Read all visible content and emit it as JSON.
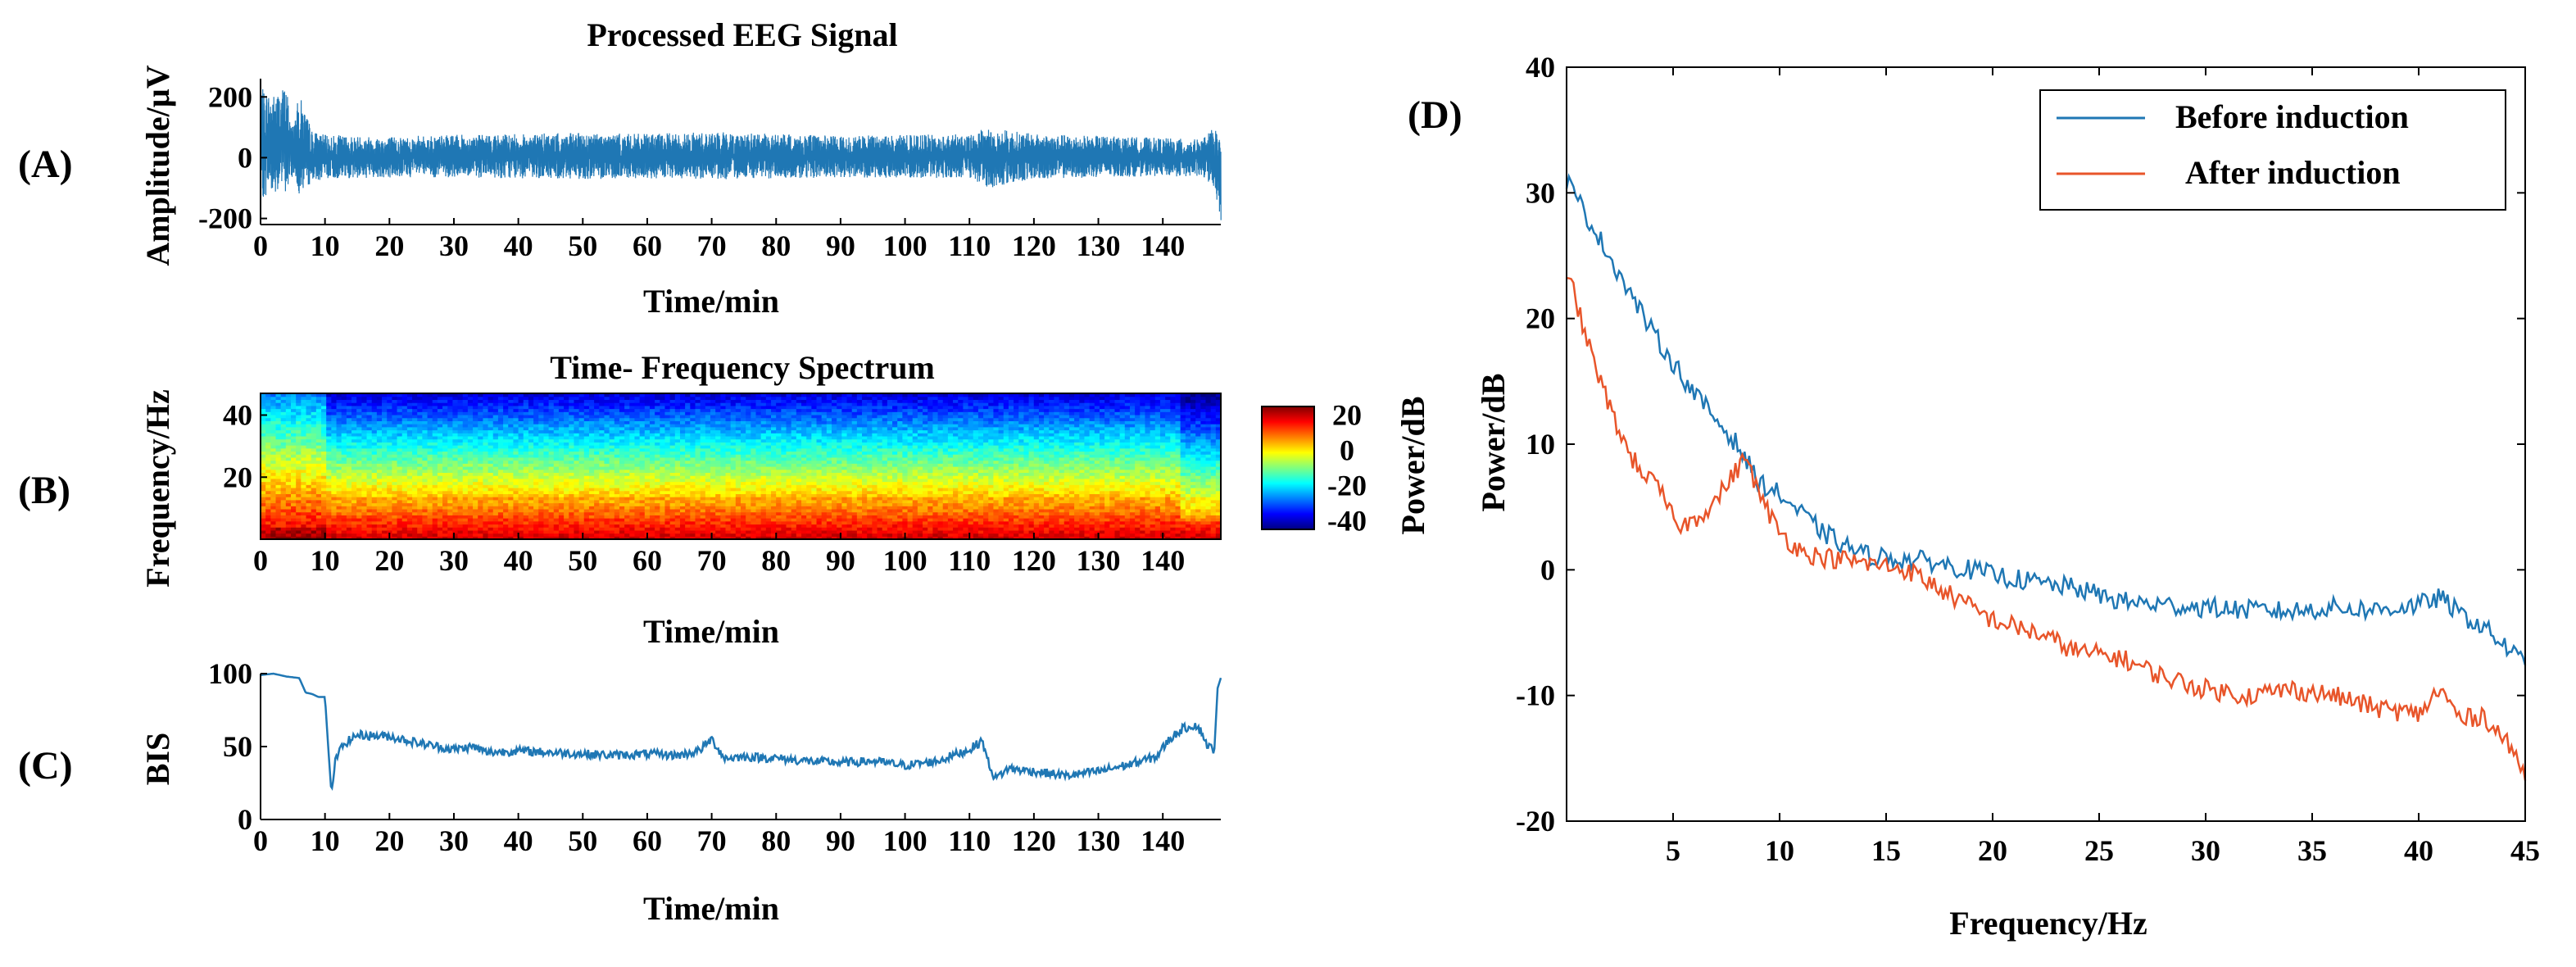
{
  "colors": {
    "blue": "#1f77b4",
    "orange": "#e8552a",
    "axis": "#000000"
  },
  "chart_data": [
    {
      "id": "A",
      "panel_label": "(A)",
      "type": "line",
      "title": "Processed EEG Signal",
      "xlabel": "Time/min",
      "ylabel": "Amplitude/µV",
      "xlim": [
        0,
        149
      ],
      "ylim": [
        -220,
        260
      ],
      "xticks": [
        0,
        10,
        20,
        30,
        40,
        50,
        60,
        70,
        80,
        90,
        100,
        110,
        120,
        130,
        140
      ],
      "yticks": [
        200,
        0,
        -200
      ],
      "ytick_labels": [
        "200",
        "0",
        "-200"
      ],
      "envelope": {
        "t": [
          0,
          2,
          4,
          5,
          6,
          8,
          10,
          20,
          30,
          40,
          50,
          60,
          70,
          80,
          90,
          100,
          110,
          113,
          120,
          130,
          140,
          146,
          148,
          149
        ],
        "upper": [
          230,
          210,
          240,
          100,
          210,
          90,
          75,
          70,
          75,
          78,
          82,
          78,
          85,
          78,
          72,
          75,
          78,
          100,
          78,
          72,
          65,
          60,
          100,
          60
        ],
        "lower": [
          -140,
          -110,
          -120,
          -60,
          -120,
          -80,
          -70,
          -65,
          -65,
          -68,
          -70,
          -70,
          -72,
          -68,
          -65,
          -66,
          -68,
          -100,
          -70,
          -65,
          -60,
          -65,
          -100,
          -210
        ]
      }
    },
    {
      "id": "B",
      "panel_label": "(B)",
      "type": "heatmap",
      "title": "Time- Frequency Spectrum",
      "xlabel": "Time/min",
      "ylabel": "Frequency/Hz",
      "xlim": [
        0,
        149
      ],
      "ylim": [
        0,
        47
      ],
      "xticks": [
        0,
        10,
        20,
        30,
        40,
        50,
        60,
        70,
        80,
        90,
        100,
        110,
        120,
        130,
        140
      ],
      "yticks": [
        40,
        20
      ],
      "colorbar": {
        "label": "Power/dB",
        "range": [
          -45,
          25
        ],
        "ticks": [
          20,
          0,
          -20,
          -40
        ]
      },
      "description_values": {
        "awake_period_min": [
          0,
          10
        ],
        "alpha_band_hz": [
          8,
          14
        ],
        "alpha_power_db": 5,
        "low_freq_power_db": 20,
        "high_freq_power_db": -35
      }
    },
    {
      "id": "C",
      "panel_label": "(C)",
      "type": "line",
      "xlabel": "Time/min",
      "ylabel": "BIS",
      "xlim": [
        0,
        149
      ],
      "ylim": [
        0,
        100
      ],
      "xticks": [
        0,
        10,
        20,
        30,
        40,
        50,
        60,
        70,
        80,
        90,
        100,
        110,
        120,
        130,
        140
      ],
      "yticks": [
        100,
        50,
        0
      ],
      "series": [
        {
          "name": "BIS",
          "x": [
            0,
            2,
            4,
            6,
            7,
            8,
            9,
            10,
            10.5,
            11,
            11.5,
            12,
            13,
            15,
            20,
            25,
            30,
            33,
            35,
            40,
            45,
            50,
            55,
            60,
            65,
            68,
            70,
            72,
            75,
            80,
            85,
            90,
            95,
            100,
            105,
            110,
            112,
            113,
            114,
            116,
            120,
            125,
            130,
            135,
            139,
            141,
            143,
            145,
            146,
            147,
            148,
            148.5,
            149
          ],
          "y": [
            99,
            100,
            98,
            97,
            87,
            86,
            84,
            84,
            50,
            18,
            38,
            45,
            52,
            58,
            57,
            52,
            48,
            50,
            46,
            47,
            46,
            45,
            44,
            45,
            44,
            47,
            55,
            42,
            43,
            42,
            40,
            39,
            40,
            37,
            40,
            48,
            54,
            38,
            28,
            35,
            33,
            30,
            33,
            38,
            43,
            55,
            62,
            65,
            60,
            50,
            48,
            90,
            97
          ]
        }
      ]
    },
    {
      "id": "D",
      "panel_label": "(D)",
      "type": "line",
      "xlabel": "Frequency/Hz",
      "ylabel": "Power/dB",
      "xlim": [
        0,
        45
      ],
      "ylim": [
        -20,
        40
      ],
      "xticks": [
        5,
        10,
        15,
        20,
        25,
        30,
        35,
        40,
        45
      ],
      "yticks": [
        40,
        30,
        20,
        10,
        0,
        -10,
        -20
      ],
      "legend_position": "top-right",
      "series": [
        {
          "name": "Before induction",
          "color": "#1f77b4",
          "x": [
            0,
            1,
            2,
            3,
            4,
            5,
            6,
            7,
            8,
            9,
            10,
            11,
            12,
            13,
            14,
            15,
            16,
            17,
            18,
            19,
            20,
            22,
            24,
            26,
            28,
            30,
            32,
            34,
            36,
            38,
            40,
            41,
            42,
            43,
            44,
            45
          ],
          "y": [
            31,
            28,
            25,
            22,
            19,
            16.5,
            14,
            12,
            10,
            7,
            6,
            4.5,
            3,
            2,
            1.2,
            1,
            0.8,
            0.7,
            0.3,
            0,
            -0.4,
            -1,
            -1.5,
            -2.5,
            -2.8,
            -3,
            -3.2,
            -3.3,
            -3,
            -3.2,
            -2.8,
            -2.2,
            -3.6,
            -4.5,
            -6,
            -7.5
          ]
        },
        {
          "name": "After induction",
          "color": "#e8552a",
          "x": [
            0,
            0.5,
            1,
            2,
            3,
            4,
            4.5,
            5,
            5.5,
            6,
            7,
            8,
            8.5,
            9,
            10,
            11,
            12,
            13,
            14,
            15,
            16,
            18,
            20,
            22,
            24,
            26,
            28,
            30,
            32,
            34,
            36,
            38,
            40,
            41,
            42,
            43,
            44,
            45
          ],
          "y": [
            24,
            21,
            18,
            13,
            9,
            7,
            6,
            4,
            3.5,
            4,
            5.5,
            8,
            9,
            6,
            3,
            1.5,
            1,
            0.8,
            0.5,
            0.3,
            0,
            -2,
            -4,
            -5,
            -6.5,
            -7,
            -8.5,
            -9.5,
            -10,
            -9.5,
            -10,
            -11,
            -11.5,
            -9.5,
            -12,
            -11.5,
            -13.5,
            -16
          ]
        }
      ]
    }
  ]
}
